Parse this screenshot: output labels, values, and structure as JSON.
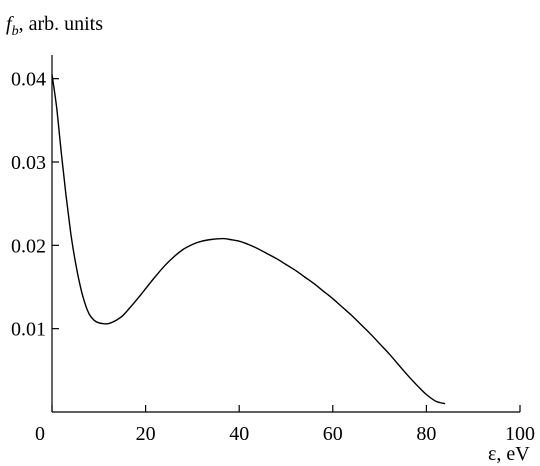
{
  "chart_data": {
    "type": "line",
    "ylabel_symbol": "f",
    "ylabel_subscript": "b",
    "ylabel_rest": ", arb. units",
    "xlabel": "ε, eV",
    "xlim": [
      0,
      100
    ],
    "ylim": [
      0,
      0.045
    ],
    "x_ticks": [
      0,
      20,
      40,
      60,
      80,
      100
    ],
    "x_tick_labels": [
      "0",
      "20",
      "40",
      "60",
      "80",
      "100"
    ],
    "y_ticks": [
      0.01,
      0.02,
      0.03,
      0.04
    ],
    "y_tick_labels": [
      "0.01",
      "0.02",
      "0.03",
      "0.04"
    ],
    "grid": false,
    "line_color": "#000000",
    "series": [
      {
        "x": [
          0,
          1,
          2,
          3,
          4,
          5,
          6,
          7,
          8,
          9,
          10,
          11,
          12,
          13,
          14,
          15,
          16,
          18,
          20,
          22,
          24,
          26,
          28,
          30,
          32,
          34,
          36,
          37,
          38,
          40,
          42,
          44,
          46,
          48,
          50,
          52,
          54,
          56,
          58,
          60,
          62,
          64,
          66,
          68,
          70,
          72,
          74,
          76,
          78,
          80,
          82,
          84
        ],
        "y": [
          0.0405,
          0.0365,
          0.031,
          0.026,
          0.0215,
          0.018,
          0.0152,
          0.0131,
          0.0117,
          0.011,
          0.0107,
          0.0106,
          0.0106,
          0.0108,
          0.0111,
          0.0115,
          0.0121,
          0.0134,
          0.0148,
          0.0162,
          0.0175,
          0.0186,
          0.0195,
          0.0201,
          0.0205,
          0.0207,
          0.0208,
          0.0208,
          0.0207,
          0.0205,
          0.0201,
          0.0196,
          0.019,
          0.0184,
          0.0177,
          0.017,
          0.0162,
          0.0154,
          0.0145,
          0.0136,
          0.0126,
          0.0116,
          0.0105,
          0.0094,
          0.0082,
          0.007,
          0.0057,
          0.0044,
          0.0032,
          0.0021,
          0.0013,
          0.001
        ]
      }
    ]
  }
}
